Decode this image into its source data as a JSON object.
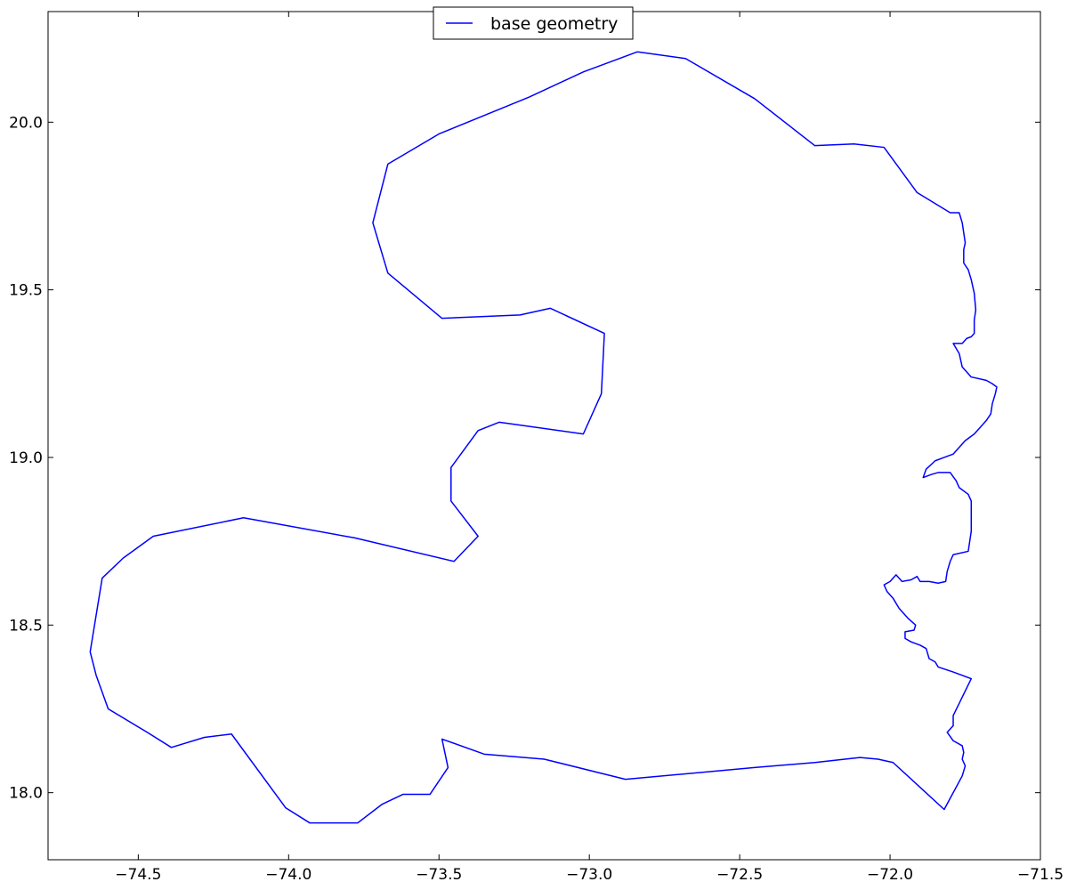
{
  "chart_data": {
    "type": "line",
    "title": "",
    "xlabel": "",
    "ylabel": "",
    "xlim": [
      -74.8,
      -71.5
    ],
    "ylim": [
      17.8,
      20.33
    ],
    "grid": false,
    "legend": {
      "placement": "top-center",
      "entries": [
        "base geometry"
      ]
    },
    "x_ticks": [
      -74.5,
      -74.0,
      -73.5,
      -73.0,
      -72.5,
      -72.0,
      -71.5
    ],
    "x_tick_labels": [
      "−74.5",
      "−74.0",
      "−73.5",
      "−73.0",
      "−72.5",
      "−72.0",
      "−71.5"
    ],
    "y_ticks": [
      18.0,
      18.5,
      19.0,
      19.5,
      20.0
    ],
    "y_tick_labels": [
      "18.0",
      "18.5",
      "19.0",
      "19.5",
      "20.0"
    ],
    "series": [
      {
        "name": "base geometry",
        "color": "#0000ff",
        "points": [
          [
            -72.84,
            20.21
          ],
          [
            -72.68,
            20.19
          ],
          [
            -72.45,
            20.07
          ],
          [
            -72.25,
            19.93
          ],
          [
            -72.12,
            19.935
          ],
          [
            -72.02,
            19.925
          ],
          [
            -71.91,
            19.79
          ],
          [
            -71.8,
            19.73
          ],
          [
            -71.77,
            19.73
          ],
          [
            -71.76,
            19.7
          ],
          [
            -71.755,
            19.67
          ],
          [
            -71.75,
            19.64
          ],
          [
            -71.755,
            19.62
          ],
          [
            -71.755,
            19.58
          ],
          [
            -71.74,
            19.56
          ],
          [
            -71.73,
            19.53
          ],
          [
            -71.72,
            19.49
          ],
          [
            -71.715,
            19.44
          ],
          [
            -71.72,
            19.41
          ],
          [
            -71.72,
            19.37
          ],
          [
            -71.73,
            19.36
          ],
          [
            -71.745,
            19.355
          ],
          [
            -71.76,
            19.34
          ],
          [
            -71.79,
            19.34
          ],
          [
            -71.77,
            19.31
          ],
          [
            -71.76,
            19.27
          ],
          [
            -71.73,
            19.24
          ],
          [
            -71.68,
            19.23
          ],
          [
            -71.66,
            19.22
          ],
          [
            -71.645,
            19.21
          ],
          [
            -71.65,
            19.19
          ],
          [
            -71.66,
            19.16
          ],
          [
            -71.665,
            19.13
          ],
          [
            -71.68,
            19.11
          ],
          [
            -71.7,
            19.09
          ],
          [
            -71.72,
            19.07
          ],
          [
            -71.75,
            19.05
          ],
          [
            -71.77,
            19.03
          ],
          [
            -71.79,
            19.01
          ],
          [
            -71.82,
            19.0
          ],
          [
            -71.85,
            18.99
          ],
          [
            -71.88,
            18.965
          ],
          [
            -71.89,
            18.94
          ],
          [
            -71.86,
            18.95
          ],
          [
            -71.84,
            18.955
          ],
          [
            -71.8,
            18.955
          ],
          [
            -71.78,
            18.93
          ],
          [
            -71.77,
            18.91
          ],
          [
            -71.74,
            18.89
          ],
          [
            -71.73,
            18.87
          ],
          [
            -71.73,
            18.84
          ],
          [
            -71.73,
            18.78
          ],
          [
            -71.74,
            18.72
          ],
          [
            -71.79,
            18.71
          ],
          [
            -71.8,
            18.69
          ],
          [
            -71.81,
            18.66
          ],
          [
            -71.815,
            18.63
          ],
          [
            -71.84,
            18.625
          ],
          [
            -71.87,
            18.63
          ],
          [
            -71.9,
            18.63
          ],
          [
            -71.91,
            18.645
          ],
          [
            -71.93,
            18.635
          ],
          [
            -71.96,
            18.63
          ],
          [
            -71.98,
            18.65
          ],
          [
            -72.0,
            18.63
          ],
          [
            -72.02,
            18.62
          ],
          [
            -72.01,
            18.6
          ],
          [
            -71.99,
            18.58
          ],
          [
            -71.97,
            18.55
          ],
          [
            -71.94,
            18.52
          ],
          [
            -71.915,
            18.5
          ],
          [
            -71.92,
            18.485
          ],
          [
            -71.95,
            18.48
          ],
          [
            -71.95,
            18.46
          ],
          [
            -71.93,
            18.45
          ],
          [
            -71.9,
            18.44
          ],
          [
            -71.88,
            18.43
          ],
          [
            -71.87,
            18.4
          ],
          [
            -71.85,
            18.39
          ],
          [
            -71.84,
            18.375
          ],
          [
            -71.79,
            18.36
          ],
          [
            -71.73,
            18.34
          ],
          [
            -71.79,
            18.23
          ],
          [
            -71.79,
            18.2
          ],
          [
            -71.81,
            18.18
          ],
          [
            -71.79,
            18.155
          ],
          [
            -71.76,
            18.14
          ],
          [
            -71.755,
            18.12
          ],
          [
            -71.76,
            18.1
          ],
          [
            -71.75,
            18.08
          ],
          [
            -71.76,
            18.05
          ],
          [
            -71.79,
            18.0
          ],
          [
            -71.82,
            17.95
          ],
          [
            -71.99,
            18.09
          ],
          [
            -72.04,
            18.1
          ],
          [
            -72.1,
            18.105
          ],
          [
            -72.25,
            18.09
          ],
          [
            -72.45,
            18.075
          ],
          [
            -72.88,
            18.04
          ],
          [
            -73.15,
            18.1
          ],
          [
            -73.35,
            18.115
          ],
          [
            -73.49,
            18.16
          ],
          [
            -73.47,
            18.075
          ],
          [
            -73.53,
            17.995
          ],
          [
            -73.62,
            17.995
          ],
          [
            -73.69,
            17.965
          ],
          [
            -73.77,
            17.91
          ],
          [
            -73.93,
            17.91
          ],
          [
            -74.01,
            17.955
          ],
          [
            -74.19,
            18.175
          ],
          [
            -74.28,
            18.165
          ],
          [
            -74.39,
            18.135
          ],
          [
            -74.47,
            18.18
          ],
          [
            -74.6,
            18.25
          ],
          [
            -74.64,
            18.35
          ],
          [
            -74.66,
            18.42
          ],
          [
            -74.62,
            18.64
          ],
          [
            -74.55,
            18.7
          ],
          [
            -74.45,
            18.765
          ],
          [
            -74.15,
            18.82
          ],
          [
            -73.78,
            18.76
          ],
          [
            -73.45,
            18.69
          ],
          [
            -73.37,
            18.765
          ],
          [
            -73.46,
            18.87
          ],
          [
            -73.46,
            18.97
          ],
          [
            -73.37,
            19.08
          ],
          [
            -73.3,
            19.105
          ],
          [
            -73.02,
            19.07
          ],
          [
            -72.96,
            19.19
          ],
          [
            -72.95,
            19.37
          ],
          [
            -73.13,
            19.445
          ],
          [
            -73.23,
            19.425
          ],
          [
            -73.49,
            19.415
          ],
          [
            -73.67,
            19.55
          ],
          [
            -73.72,
            19.7
          ],
          [
            -73.67,
            19.875
          ],
          [
            -73.5,
            19.965
          ],
          [
            -73.2,
            20.075
          ],
          [
            -73.02,
            20.15
          ],
          [
            -72.84,
            20.21
          ]
        ]
      }
    ]
  }
}
